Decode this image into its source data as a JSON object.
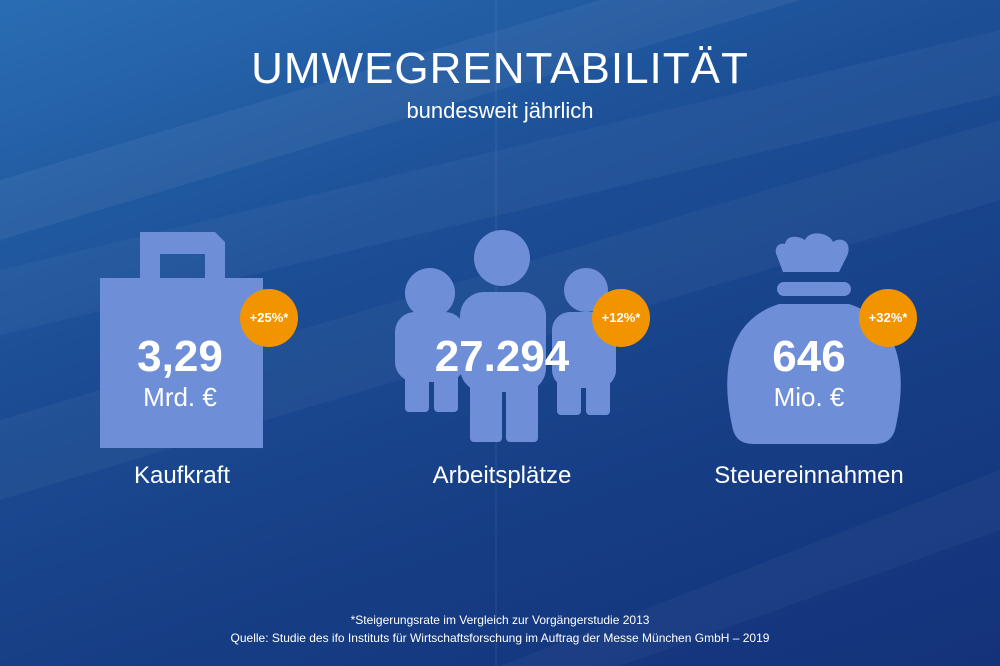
{
  "colors": {
    "accent": "#f29400",
    "icon": "#6e8fd8",
    "text": "#ffffff"
  },
  "header": {
    "title": "UMWEGRENTABILITÄT",
    "subtitle": "bundesweit jährlich"
  },
  "stats": [
    {
      "icon": "shopping-bag-icon",
      "value": "3,29",
      "unit": "Mrd. €",
      "badge": "+25%*",
      "label": "Kaufkraft"
    },
    {
      "icon": "people-group-icon",
      "value": "27.294",
      "unit": "",
      "badge": "+12%*",
      "label": "Arbeitsplätze"
    },
    {
      "icon": "money-bag-icon",
      "value": "646",
      "unit": "Mio. €",
      "badge": "+32%*",
      "label": "Steuereinnahmen"
    }
  ],
  "footer": {
    "footnote": "*Steigerungsrate im Vergleich zur Vorgängerstudie 2013",
    "source": "Quelle: Studie des ifo Instituts für Wirtschaftsforschung im Auftrag der Messe München GmbH – 2019"
  }
}
